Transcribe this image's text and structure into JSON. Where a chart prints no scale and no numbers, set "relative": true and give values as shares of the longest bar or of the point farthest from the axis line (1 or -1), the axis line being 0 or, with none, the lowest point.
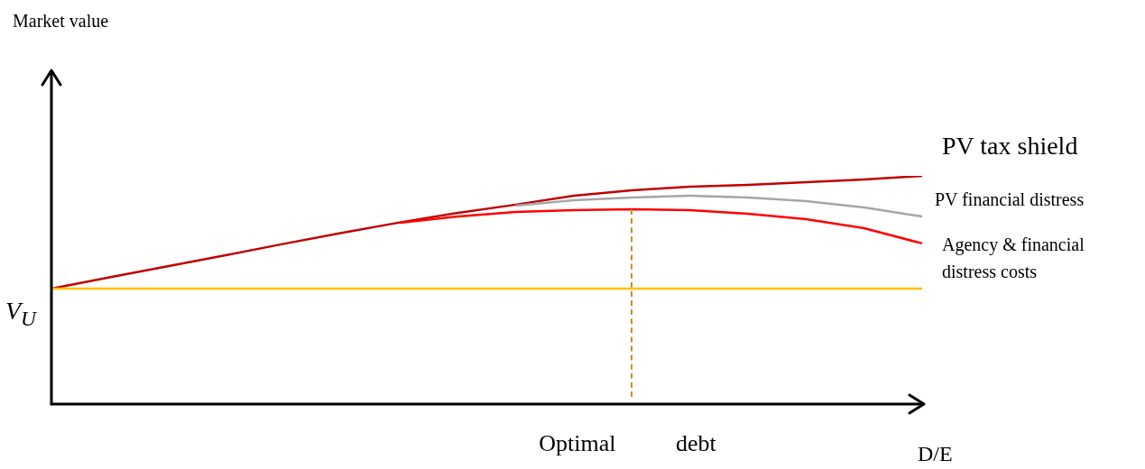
{
  "chart_data": {
    "type": "line",
    "relative": true,
    "xlabel": "D/E",
    "legend": false,
    "marker": "none",
    "annotations": [
      "Market value",
      "Optimal debt"
    ],
    "categories": [
      null,
      null,
      null,
      null,
      null,
      null,
      null,
      null,
      null,
      null,
      null,
      null,
      null,
      null,
      null,
      null
    ],
    "series": [
      {
        "name": "V$_{U}$",
        "color": "#ffc000",
        "values": [
          0.506,
          0.506,
          0.506,
          0.506,
          0.506,
          0.506,
          0.506,
          0.506,
          0.506,
          0.506,
          0.506,
          0.506,
          0.506,
          0.506,
          0.506,
          0.506
        ]
      },
      {
        "name": "Agency & financial distress costs",
        "color": "#ff0000",
        "values": [
          null,
          null,
          null,
          null,
          null,
          null,
          0.794,
          0.822,
          0.842,
          0.85,
          0.854,
          0.85,
          0.834,
          0.81,
          0.771,
          0.704
        ]
      },
      {
        "name": "PV financial distress",
        "color": "#a6a6a6",
        "values": [
          null,
          null,
          null,
          null,
          null,
          null,
          null,
          null,
          0.87,
          0.893,
          0.905,
          0.913,
          0.905,
          0.889,
          0.862,
          0.822
        ]
      },
      {
        "name": "PV tax shield",
        "color": "#c00000",
        "values": [
          0.506,
          0.555,
          0.604,
          0.652,
          0.702,
          0.75,
          0.796,
          0.838,
          0.874,
          0.913,
          0.937,
          0.953,
          0.96,
          0.972,
          0.984,
          1
        ]
      }
    ]
  }
}
